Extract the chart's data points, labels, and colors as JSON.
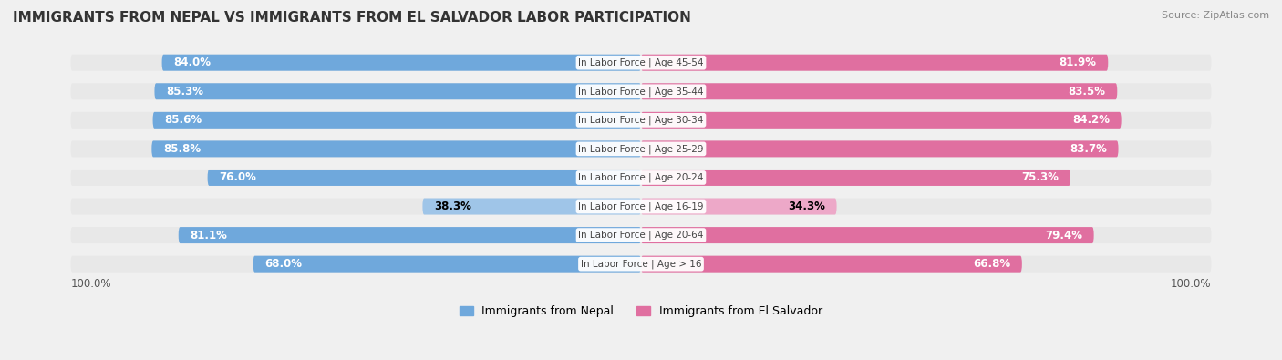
{
  "title": "IMMIGRANTS FROM NEPAL VS IMMIGRANTS FROM EL SALVADOR LABOR PARTICIPATION",
  "source": "Source: ZipAtlas.com",
  "categories": [
    "In Labor Force | Age > 16",
    "In Labor Force | Age 20-64",
    "In Labor Force | Age 16-19",
    "In Labor Force | Age 20-24",
    "In Labor Force | Age 25-29",
    "In Labor Force | Age 30-34",
    "In Labor Force | Age 35-44",
    "In Labor Force | Age 45-54"
  ],
  "nepal_values": [
    68.0,
    81.1,
    38.3,
    76.0,
    85.8,
    85.6,
    85.3,
    84.0
  ],
  "salvador_values": [
    66.8,
    79.4,
    34.3,
    75.3,
    83.7,
    84.2,
    83.5,
    81.9
  ],
  "nepal_color": "#6fa8dc",
  "nepal_color_light": "#9fc5e8",
  "salvador_color": "#e06fa0",
  "salvador_color_light": "#eda8c8",
  "bg_color": "#f0f0f0",
  "bar_bg_color": "#e8e8e8",
  "legend_nepal": "Immigrants from Nepal",
  "legend_salvador": "Immigrants from El Salvador",
  "max_value": 100.0,
  "bar_height": 0.55,
  "label_fontsize": 8.5,
  "title_fontsize": 11
}
